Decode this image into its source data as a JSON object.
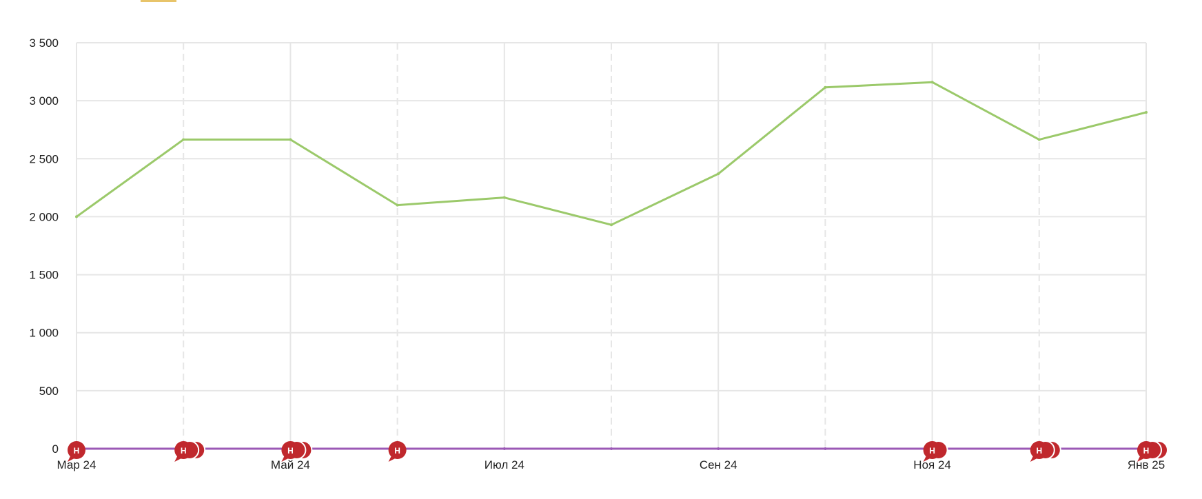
{
  "chart_data": {
    "type": "line",
    "x_ticks": [
      "Мар 24",
      "Май 24",
      "Июл 24",
      "Сен 24",
      "Ноя 24",
      "Янв 25"
    ],
    "x": [
      "2024-03",
      "2024-04",
      "2024-05",
      "2024-06",
      "2024-07",
      "2024-08",
      "2024-09",
      "2024-10",
      "2024-11",
      "2024-12",
      "2025-01"
    ],
    "xlim": [
      "2024-03",
      "2025-01"
    ],
    "ylim": [
      0,
      3500
    ],
    "y_ticks": [
      "0",
      "500",
      "1 000",
      "1 500",
      "2 000",
      "2 500",
      "3 000",
      "3 500"
    ],
    "y_tick_values": [
      0,
      500,
      1000,
      1500,
      2000,
      2500,
      3000,
      3500
    ],
    "grid": true,
    "series": [
      {
        "color": "#9bc96a",
        "values": [
          2000,
          2665,
          2665,
          2100,
          2165,
          1930,
          2370,
          3115,
          3160,
          2665,
          2900
        ]
      },
      {
        "color": "#9b59b6",
        "values": [
          0,
          0,
          0,
          0,
          0,
          0,
          0,
          0,
          0,
          0,
          0
        ]
      }
    ],
    "event_markers": [
      {
        "x": "2024-03",
        "count": 1,
        "label": "Н"
      },
      {
        "x": "2024-04",
        "count": 3,
        "label": "Н"
      },
      {
        "x": "2024-05",
        "count": 3,
        "label": "Н"
      },
      {
        "x": "2024-06",
        "count": 1,
        "label": "Н"
      },
      {
        "x": "2024-11",
        "count": 2,
        "label": "Н"
      },
      {
        "x": "2024-12",
        "count": 3,
        "label": "Н"
      },
      {
        "x": "2025-01",
        "count": 3,
        "label": "Н"
      }
    ],
    "marker_color": "#c0282d",
    "grid_color": "#e6e6e6"
  }
}
